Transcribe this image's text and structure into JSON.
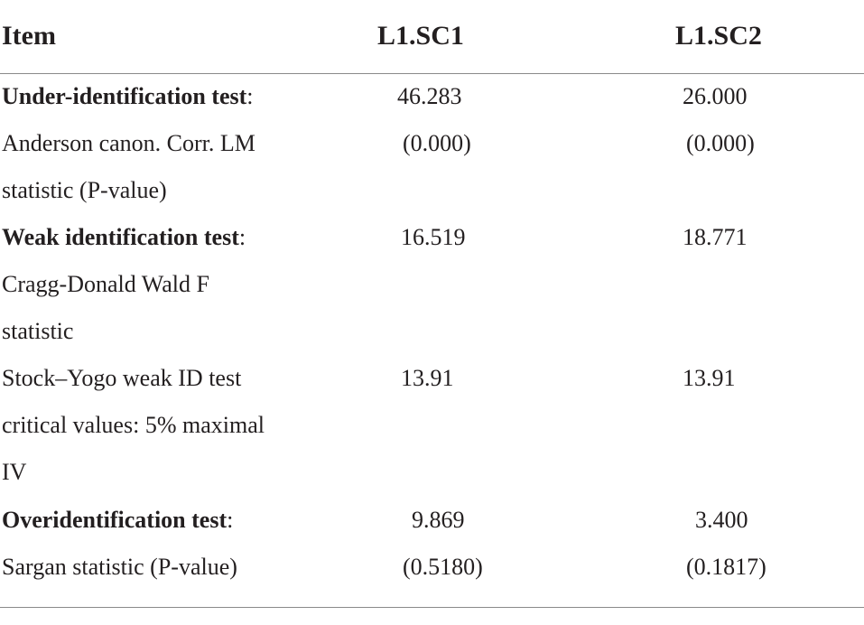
{
  "headers": {
    "item": "Item",
    "sc1": "L1.SC1",
    "sc2": "L1.SC2"
  },
  "rows": [
    {
      "label_bold": "Under-identification test",
      "label_rest": ":",
      "sc1": "46.283",
      "sc2": "26.000"
    },
    {
      "label": "Anderson canon. Corr. LM",
      "sc1": "(0.000)",
      "sc2": "(0.000)"
    },
    {
      "label": "statistic (P-value)",
      "sc1": "",
      "sc2": ""
    },
    {
      "label_bold": "Weak identification test",
      "label_rest": ":",
      "sc1": "16.519",
      "sc2": "18.771"
    },
    {
      "label": "Cragg-Donald Wald F",
      "sc1": "",
      "sc2": ""
    },
    {
      "label": "statistic",
      "sc1": "",
      "sc2": ""
    },
    {
      "label": "Stock–Yogo weak ID test",
      "sc1": "13.91",
      "sc2": "13.91"
    },
    {
      "label": "critical values: 5% maximal",
      "sc1": "",
      "sc2": ""
    },
    {
      "label": "IV",
      "sc1": "",
      "sc2": ""
    },
    {
      "label_bold": "Overidentification test",
      "label_rest": ":",
      "sc1": "9.869",
      "sc2": "3.400"
    },
    {
      "label": "Sargan statistic (P-value)",
      "sc1": "(0.5180)",
      "sc2": "(0.1817)"
    }
  ]
}
